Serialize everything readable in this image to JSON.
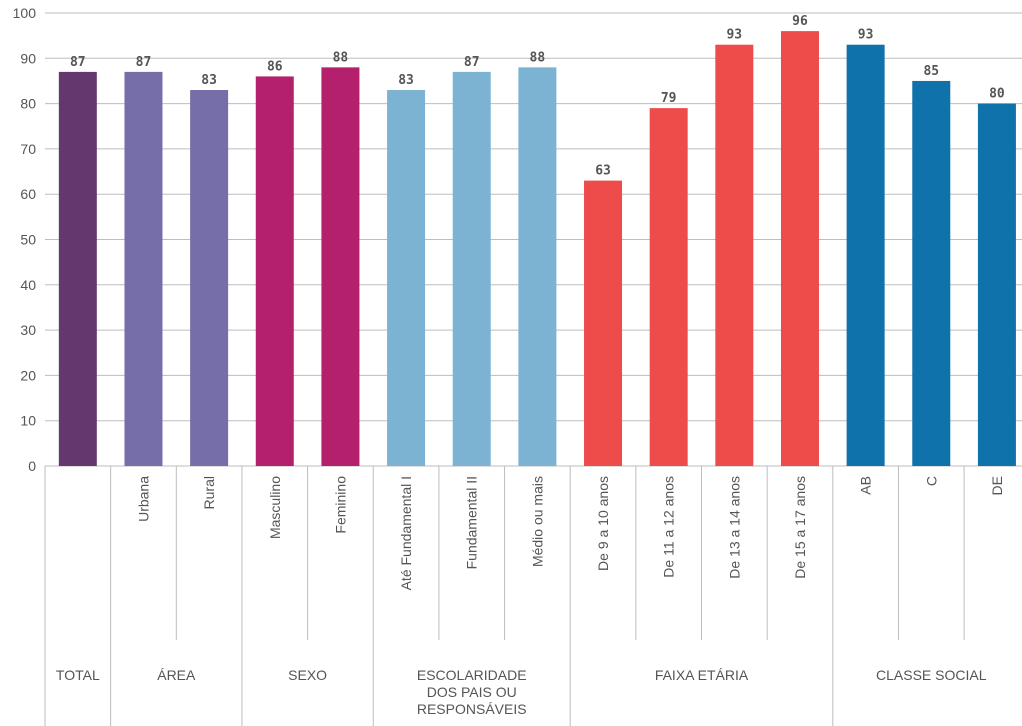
{
  "chart_data": {
    "type": "bar",
    "ylim": [
      0,
      100
    ],
    "yticks": [
      "0",
      "10",
      "20",
      "30",
      "40",
      "50",
      "60",
      "70",
      "80",
      "90",
      "100"
    ],
    "grid": true,
    "colors": {
      "TOTAL": "#65376f",
      "ÁREA": "#756ea8",
      "SEXO": "#b5206d",
      "ESCOLARIDADE DOS PAIS OU RESPONSÁVEIS": "#7db3d2",
      "FAIXA ETÁRIA": "#ee4b4b",
      "CLASSE SOCIAL": "#0f72aa"
    },
    "groups": [
      {
        "name": "TOTAL",
        "lines": [
          "TOTAL"
        ],
        "categories": [
          ""
        ],
        "values": [
          87
        ]
      },
      {
        "name": "ÁREA",
        "lines": [
          "ÁREA"
        ],
        "categories": [
          "Urbana",
          "Rural"
        ],
        "values": [
          87,
          83
        ]
      },
      {
        "name": "SEXO",
        "lines": [
          "SEXO"
        ],
        "categories": [
          "Masculino",
          "Feminino"
        ],
        "values": [
          86,
          88
        ]
      },
      {
        "name": "ESCOLARIDADE DOS PAIS OU RESPONSÁVEIS",
        "lines": [
          "ESCOLARIDADE",
          "DOS PAIS OU",
          "RESPONSÁVEIS"
        ],
        "categories": [
          "Até Fundamental I",
          "Fundamental II",
          "Médio ou mais"
        ],
        "values": [
          83,
          87,
          88
        ]
      },
      {
        "name": "FAIXA ETÁRIA",
        "lines": [
          "FAIXA ETÁRIA"
        ],
        "categories": [
          "De 9 a 10 anos",
          "De 11 a 12 anos",
          "De 13 a 14 anos",
          "De 15 a 17 anos"
        ],
        "values": [
          63,
          79,
          93,
          96
        ]
      },
      {
        "name": "CLASSE SOCIAL",
        "lines": [
          "CLASSE SOCIAL"
        ],
        "categories": [
          "AB",
          "C",
          "DE"
        ],
        "values": [
          93,
          85,
          80
        ]
      }
    ]
  }
}
